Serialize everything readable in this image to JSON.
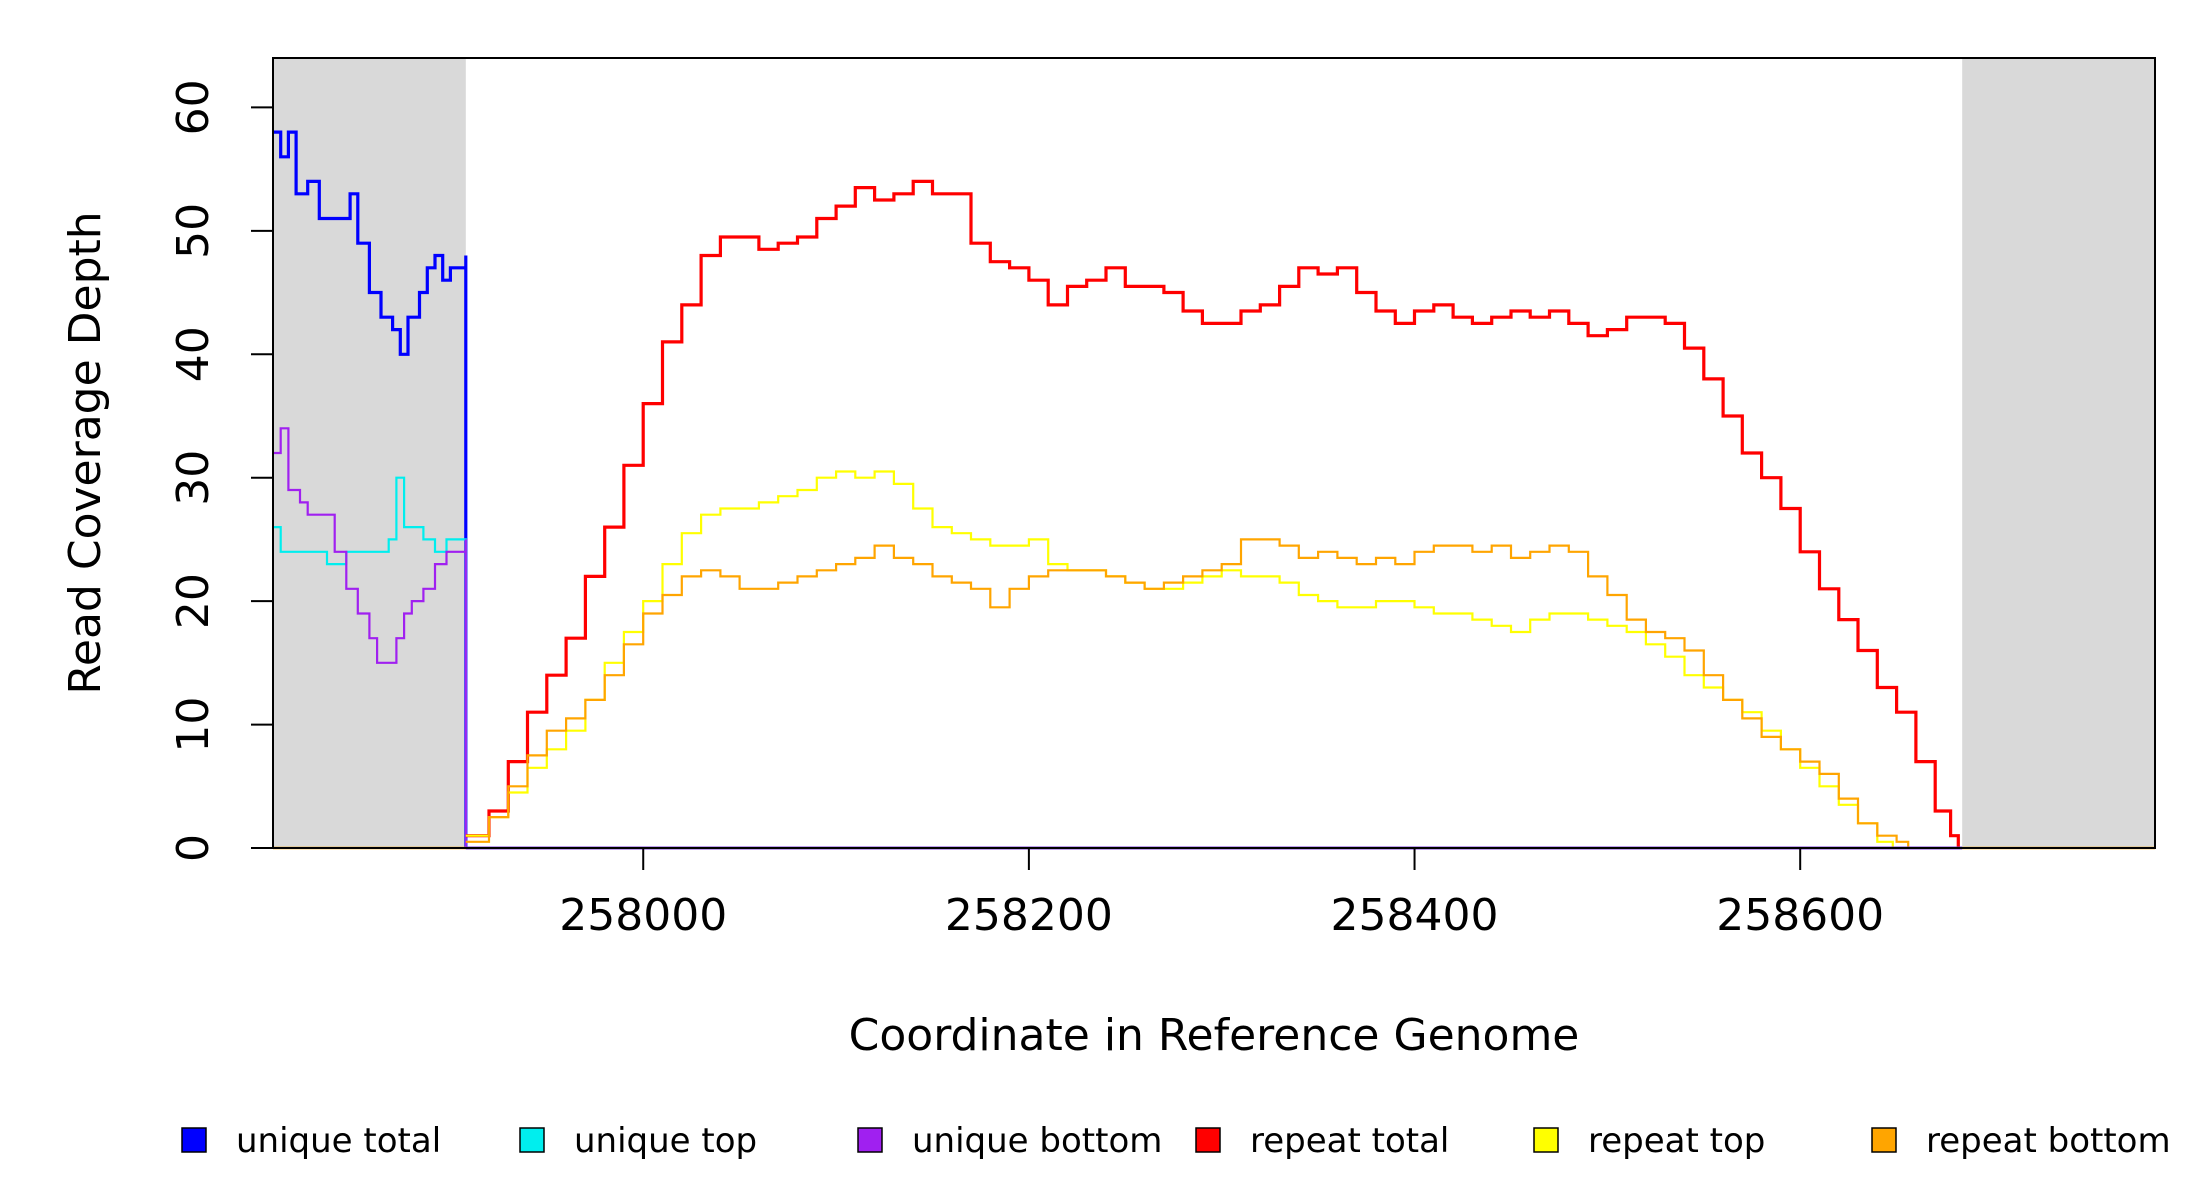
{
  "chart_data": {
    "type": "line",
    "title": "",
    "xlabel": "Coordinate in Reference Genome",
    "ylabel": "Read Coverage Depth",
    "xlim": [
      257808,
      258784
    ],
    "ylim": [
      0,
      64
    ],
    "x_ticks": [
      258000,
      258200,
      258400,
      258600
    ],
    "x_tick_labels": [
      "258000",
      "258200",
      "258400",
      "258600"
    ],
    "y_ticks": [
      0,
      10,
      20,
      30,
      40,
      50,
      60
    ],
    "y_tick_labels": [
      "0",
      "10",
      "20",
      "30",
      "40",
      "50",
      "60"
    ],
    "shaded_regions": [
      [
        257808,
        257908
      ],
      [
        258684,
        258784
      ]
    ],
    "repeat_region": [
      257908,
      258684
    ],
    "series": [
      {
        "name": "unique total",
        "color": "#0000FF",
        "width": 3.2,
        "points": [
          [
            257808,
            58
          ],
          [
            257812,
            56
          ],
          [
            257816,
            58
          ],
          [
            257820,
            53
          ],
          [
            257826,
            54
          ],
          [
            257832,
            51
          ],
          [
            257840,
            51
          ],
          [
            257848,
            53
          ],
          [
            257852,
            49
          ],
          [
            257858,
            45
          ],
          [
            257864,
            43
          ],
          [
            257870,
            42
          ],
          [
            257874,
            40
          ],
          [
            257878,
            43
          ],
          [
            257884,
            45
          ],
          [
            257888,
            47
          ],
          [
            257892,
            48
          ],
          [
            257896,
            46
          ],
          [
            257900,
            47
          ],
          [
            257908,
            48
          ],
          [
            257908,
            0
          ]
        ]
      },
      {
        "name": "unique top",
        "color": "#00EEEE",
        "width": 2.2,
        "points": [
          [
            257808,
            26
          ],
          [
            257812,
            24
          ],
          [
            257820,
            24
          ],
          [
            257830,
            24
          ],
          [
            257836,
            23
          ],
          [
            257846,
            24
          ],
          [
            257860,
            24
          ],
          [
            257868,
            25
          ],
          [
            257872,
            30
          ],
          [
            257876,
            26
          ],
          [
            257880,
            26
          ],
          [
            257886,
            25
          ],
          [
            257892,
            24
          ],
          [
            257898,
            25
          ],
          [
            257908,
            23
          ],
          [
            257908,
            0
          ]
        ]
      },
      {
        "name": "unique bottom",
        "color": "#A020F0",
        "width": 2.2,
        "points": [
          [
            257808,
            32
          ],
          [
            257812,
            34
          ],
          [
            257816,
            29
          ],
          [
            257822,
            28
          ],
          [
            257826,
            27
          ],
          [
            257836,
            27
          ],
          [
            257840,
            24
          ],
          [
            257846,
            21
          ],
          [
            257852,
            19
          ],
          [
            257858,
            17
          ],
          [
            257862,
            15
          ],
          [
            257868,
            15
          ],
          [
            257872,
            17
          ],
          [
            257876,
            19
          ],
          [
            257880,
            20
          ],
          [
            257886,
            21
          ],
          [
            257892,
            23
          ],
          [
            257898,
            24
          ],
          [
            257908,
            25
          ],
          [
            257908,
            0
          ]
        ]
      },
      {
        "name": "repeat total",
        "color": "#FF0000",
        "width": 3.2,
        "points": [
          [
            257908,
            1
          ],
          [
            257920,
            3
          ],
          [
            257930,
            7
          ],
          [
            257940,
            11
          ],
          [
            257950,
            14
          ],
          [
            257960,
            17
          ],
          [
            257970,
            22
          ],
          [
            257980,
            26
          ],
          [
            257990,
            31
          ],
          [
            258000,
            36
          ],
          [
            258010,
            41
          ],
          [
            258020,
            44
          ],
          [
            258030,
            48
          ],
          [
            258040,
            49.5
          ],
          [
            258050,
            49.5
          ],
          [
            258060,
            48.5
          ],
          [
            258070,
            49
          ],
          [
            258080,
            49.5
          ],
          [
            258090,
            51
          ],
          [
            258100,
            52
          ],
          [
            258110,
            53.5
          ],
          [
            258120,
            52.5
          ],
          [
            258130,
            53
          ],
          [
            258140,
            54
          ],
          [
            258150,
            53
          ],
          [
            258160,
            53
          ],
          [
            258170,
            49
          ],
          [
            258180,
            47.5
          ],
          [
            258190,
            47
          ],
          [
            258200,
            46
          ],
          [
            258210,
            44
          ],
          [
            258220,
            45.5
          ],
          [
            258230,
            46
          ],
          [
            258240,
            47
          ],
          [
            258250,
            45.5
          ],
          [
            258260,
            45.5
          ],
          [
            258270,
            45
          ],
          [
            258280,
            43.5
          ],
          [
            258290,
            42.5
          ],
          [
            258300,
            42.5
          ],
          [
            258310,
            43.5
          ],
          [
            258320,
            44
          ],
          [
            258330,
            45.5
          ],
          [
            258340,
            47
          ],
          [
            258350,
            46.5
          ],
          [
            258360,
            47
          ],
          [
            258370,
            45
          ],
          [
            258380,
            43.5
          ],
          [
            258390,
            42.5
          ],
          [
            258400,
            43.5
          ],
          [
            258410,
            44
          ],
          [
            258420,
            43
          ],
          [
            258430,
            42.5
          ],
          [
            258440,
            43
          ],
          [
            258450,
            43.5
          ],
          [
            258460,
            43
          ],
          [
            258470,
            43.5
          ],
          [
            258480,
            42.5
          ],
          [
            258490,
            41.5
          ],
          [
            258500,
            42
          ],
          [
            258510,
            43
          ],
          [
            258520,
            43
          ],
          [
            258530,
            42.5
          ],
          [
            258540,
            40.5
          ],
          [
            258550,
            38
          ],
          [
            258560,
            35
          ],
          [
            258570,
            32
          ],
          [
            258580,
            30
          ],
          [
            258590,
            27.5
          ],
          [
            258600,
            24
          ],
          [
            258610,
            21
          ],
          [
            258620,
            18.5
          ],
          [
            258630,
            16
          ],
          [
            258640,
            13
          ],
          [
            258650,
            11
          ],
          [
            258660,
            7
          ],
          [
            258670,
            3
          ],
          [
            258678,
            1
          ],
          [
            258682,
            0
          ]
        ]
      },
      {
        "name": "repeat top",
        "color": "#FFFF00",
        "width": 2.2,
        "points": [
          [
            257908,
            1
          ],
          [
            257920,
            2.5
          ],
          [
            257930,
            4.5
          ],
          [
            257940,
            6.5
          ],
          [
            257950,
            8
          ],
          [
            257960,
            9.5
          ],
          [
            257970,
            12
          ],
          [
            257980,
            15
          ],
          [
            257990,
            17.5
          ],
          [
            258000,
            20
          ],
          [
            258010,
            23
          ],
          [
            258020,
            25.5
          ],
          [
            258030,
            27
          ],
          [
            258040,
            27.5
          ],
          [
            258050,
            27.5
          ],
          [
            258060,
            28
          ],
          [
            258070,
            28.5
          ],
          [
            258080,
            29
          ],
          [
            258090,
            30
          ],
          [
            258100,
            30.5
          ],
          [
            258110,
            30
          ],
          [
            258120,
            30.5
          ],
          [
            258130,
            29.5
          ],
          [
            258140,
            27.5
          ],
          [
            258150,
            26
          ],
          [
            258160,
            25.5
          ],
          [
            258170,
            25
          ],
          [
            258180,
            24.5
          ],
          [
            258190,
            24.5
          ],
          [
            258200,
            25
          ],
          [
            258210,
            23
          ],
          [
            258220,
            22.5
          ],
          [
            258230,
            22.5
          ],
          [
            258240,
            22
          ],
          [
            258250,
            21.5
          ],
          [
            258260,
            21
          ],
          [
            258270,
            21
          ],
          [
            258280,
            21.5
          ],
          [
            258290,
            22
          ],
          [
            258300,
            22.5
          ],
          [
            258310,
            22
          ],
          [
            258320,
            22
          ],
          [
            258330,
            21.5
          ],
          [
            258340,
            20.5
          ],
          [
            258350,
            20
          ],
          [
            258360,
            19.5
          ],
          [
            258370,
            19.5
          ],
          [
            258380,
            20
          ],
          [
            258390,
            20
          ],
          [
            258400,
            19.5
          ],
          [
            258410,
            19
          ],
          [
            258420,
            19
          ],
          [
            258430,
            18.5
          ],
          [
            258440,
            18
          ],
          [
            258450,
            17.5
          ],
          [
            258460,
            18.5
          ],
          [
            258470,
            19
          ],
          [
            258480,
            19
          ],
          [
            258490,
            18.5
          ],
          [
            258500,
            18
          ],
          [
            258510,
            17.5
          ],
          [
            258520,
            16.5
          ],
          [
            258530,
            15.5
          ],
          [
            258540,
            14
          ],
          [
            258550,
            13
          ],
          [
            258560,
            12
          ],
          [
            258570,
            11
          ],
          [
            258580,
            9.5
          ],
          [
            258590,
            8
          ],
          [
            258600,
            6.5
          ],
          [
            258610,
            5
          ],
          [
            258620,
            3.5
          ],
          [
            258630,
            2
          ],
          [
            258640,
            0.5
          ],
          [
            258648,
            0
          ]
        ]
      },
      {
        "name": "repeat bottom",
        "color": "#FFA500",
        "width": 2.2,
        "points": [
          [
            257908,
            0.5
          ],
          [
            257920,
            2.5
          ],
          [
            257930,
            5
          ],
          [
            257940,
            7.5
          ],
          [
            257950,
            9.5
          ],
          [
            257960,
            10.5
          ],
          [
            257970,
            12
          ],
          [
            257980,
            14
          ],
          [
            257990,
            16.5
          ],
          [
            258000,
            19
          ],
          [
            258010,
            20.5
          ],
          [
            258020,
            22
          ],
          [
            258030,
            22.5
          ],
          [
            258040,
            22
          ],
          [
            258050,
            21
          ],
          [
            258060,
            21
          ],
          [
            258070,
            21.5
          ],
          [
            258080,
            22
          ],
          [
            258090,
            22.5
          ],
          [
            258100,
            23
          ],
          [
            258110,
            23.5
          ],
          [
            258120,
            24.5
          ],
          [
            258130,
            23.5
          ],
          [
            258140,
            23
          ],
          [
            258150,
            22
          ],
          [
            258160,
            21.5
          ],
          [
            258170,
            21
          ],
          [
            258180,
            19.5
          ],
          [
            258190,
            21
          ],
          [
            258200,
            22
          ],
          [
            258210,
            22.5
          ],
          [
            258220,
            22.5
          ],
          [
            258230,
            22.5
          ],
          [
            258240,
            22
          ],
          [
            258250,
            21.5
          ],
          [
            258260,
            21
          ],
          [
            258270,
            21.5
          ],
          [
            258280,
            22
          ],
          [
            258290,
            22.5
          ],
          [
            258300,
            23
          ],
          [
            258310,
            25
          ],
          [
            258320,
            25
          ],
          [
            258330,
            24.5
          ],
          [
            258340,
            23.5
          ],
          [
            258350,
            24
          ],
          [
            258360,
            23.5
          ],
          [
            258370,
            23
          ],
          [
            258380,
            23.5
          ],
          [
            258390,
            23
          ],
          [
            258400,
            24
          ],
          [
            258410,
            24.5
          ],
          [
            258420,
            24.5
          ],
          [
            258430,
            24
          ],
          [
            258440,
            24.5
          ],
          [
            258450,
            23.5
          ],
          [
            258460,
            24
          ],
          [
            258470,
            24.5
          ],
          [
            258480,
            24
          ],
          [
            258490,
            22
          ],
          [
            258500,
            20.5
          ],
          [
            258510,
            18.5
          ],
          [
            258520,
            17.5
          ],
          [
            258530,
            17
          ],
          [
            258540,
            16
          ],
          [
            258550,
            14
          ],
          [
            258560,
            12
          ],
          [
            258570,
            10.5
          ],
          [
            258580,
            9
          ],
          [
            258590,
            8
          ],
          [
            258600,
            7
          ],
          [
            258610,
            6
          ],
          [
            258620,
            4
          ],
          [
            258630,
            2
          ],
          [
            258640,
            1
          ],
          [
            258650,
            0.5
          ],
          [
            258656,
            0
          ]
        ]
      }
    ],
    "legend": {
      "placement": "bottom",
      "entries": [
        {
          "label": "unique total",
          "color": "#0000FF"
        },
        {
          "label": "unique top",
          "color": "#00EEEE"
        },
        {
          "label": "unique bottom",
          "color": "#A020F0"
        },
        {
          "label": "repeat total",
          "color": "#FF0000"
        },
        {
          "label": "repeat top",
          "color": "#FFFF00"
        },
        {
          "label": "repeat bottom",
          "color": "#FFA500"
        }
      ]
    }
  }
}
